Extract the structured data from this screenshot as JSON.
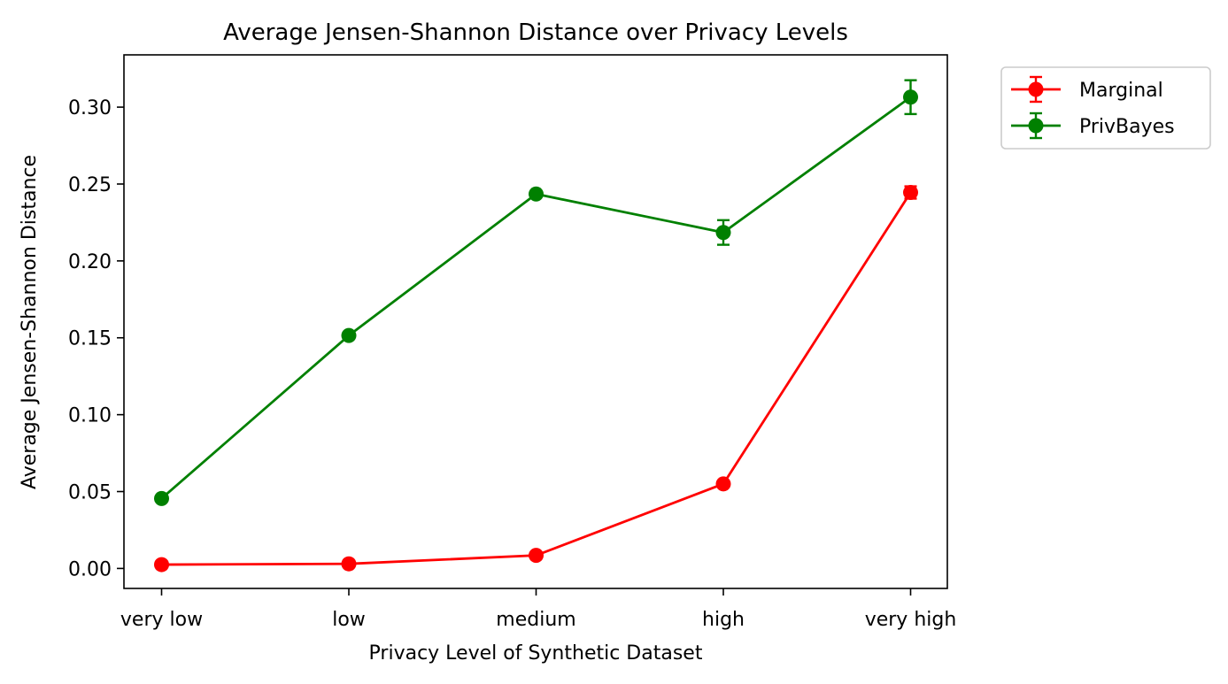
{
  "chart_data": {
    "type": "line",
    "title": "Average Jensen-Shannon Distance over Privacy Levels",
    "xlabel": "Privacy Level of Synthetic Dataset",
    "ylabel": "Average Jensen-Shannon Distance",
    "categories": [
      "very low",
      "low",
      "medium",
      "high",
      "very high"
    ],
    "ylim": [
      -0.013,
      0.334
    ],
    "yticks": [
      "0.00",
      "0.05",
      "0.10",
      "0.15",
      "0.20",
      "0.25",
      "0.30"
    ],
    "grid": false,
    "legend_position": "outside-top-right",
    "error_bars": true,
    "series": [
      {
        "name": "Marginal",
        "color": "#ff0000",
        "values": [
          0.0025,
          0.003,
          0.0085,
          0.055,
          0.2445
        ],
        "errors": [
          0.0005,
          0.0005,
          0.001,
          0.002,
          0.004
        ]
      },
      {
        "name": "PrivBayes",
        "color": "#008000",
        "values": [
          0.0455,
          0.1515,
          0.2435,
          0.2185,
          0.3065
        ],
        "errors": [
          0.001,
          0.001,
          0.002,
          0.008,
          0.011
        ]
      }
    ]
  }
}
